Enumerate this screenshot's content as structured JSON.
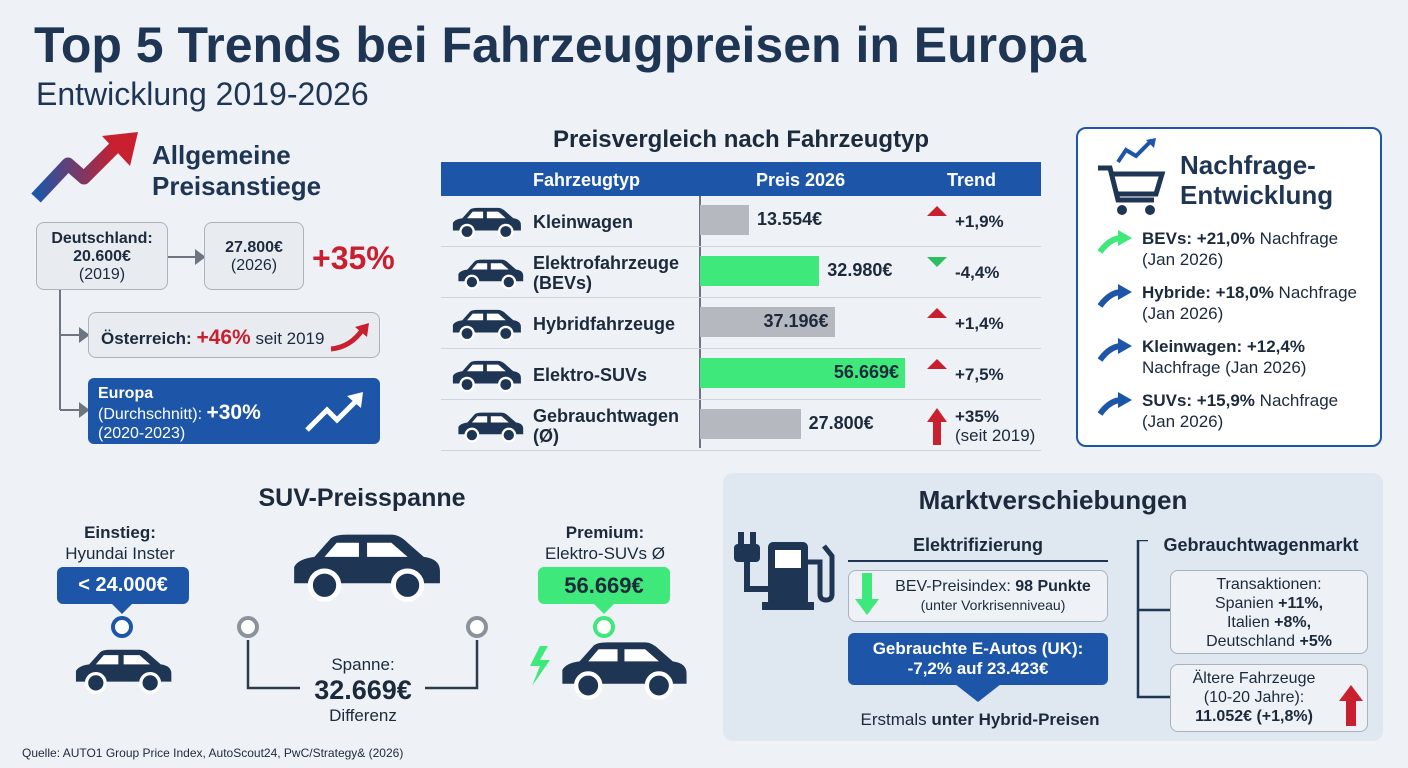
{
  "header": {
    "title": "Top 5 Trends bei Fahrzeugpreisen in Europa",
    "subtitle": "Entwicklung 2019-2026"
  },
  "price_rise": {
    "title": [
      "Allgemeine",
      "Preisanstiege"
    ],
    "germany_label": "Deutschland:",
    "germany_2019": "20.600€",
    "year_2019": "(2019)",
    "germany_2026": "27.800€",
    "year_2026": "(2026)",
    "change": "+35%",
    "austria_label": "Österreich:",
    "austria_change": "+46%",
    "austria_since": "seit 2019",
    "europe_label": "Europa",
    "europe_avg": "(Durchschnitt):",
    "europe_change": "+30%",
    "europe_period": "(2020-2023)"
  },
  "table": {
    "title": "Preisvergleich nach Fahrzeugtyp",
    "columns": [
      "Fahrzeugtyp",
      "Preis 2026",
      "Trend"
    ],
    "rows": [
      {
        "type": [
          "Kleinwagen"
        ],
        "price": 13554,
        "price_label": "13.554€",
        "bar_color": "#b5b9bf",
        "trend": "+1,9%",
        "direction": "up"
      },
      {
        "type": [
          "Elektrofahrzeuge",
          "(BEVs)"
        ],
        "price": 32980,
        "price_label": "32.980€",
        "bar_color": "#3ee87a",
        "trend": "-4,4%",
        "direction": "down"
      },
      {
        "type": [
          "Hybridfahrzeuge"
        ],
        "price": 37196,
        "price_label": "37.196€",
        "bar_color": "#b5b9bf",
        "trend": "+1,4%",
        "direction": "up"
      },
      {
        "type": [
          "Elektro-SUVs"
        ],
        "price": 56669,
        "price_label": "56.669€",
        "bar_color": "#3ee87a",
        "trend": "+7,5%",
        "direction": "up"
      },
      {
        "type": [
          "Gebrauchtwagen",
          "(Ø)"
        ],
        "price": 27800,
        "price_label": "27.800€",
        "bar_color": "#b5b9bf",
        "trend": "+35%",
        "trend_note": "(seit 2019)",
        "direction": "up-strong"
      }
    ]
  },
  "demand": {
    "title": [
      "Nachfrage-",
      "Entwicklung"
    ],
    "items": [
      {
        "bold": "BEVs: +21,0%",
        "text": "Nachfrage (Jan 2026)",
        "arrow_color": "#3ee87a"
      },
      {
        "bold": "Hybride: +18,0%",
        "text": "Nachfrage (Jan 2026)",
        "arrow_color": "#1d56a8"
      },
      {
        "bold": "Kleinwagen: +12,4%",
        "text": "Nachfrage (Jan 2026)",
        "arrow_color": "#1d56a8"
      },
      {
        "bold": "SUVs: +15,9%",
        "text": "Nachfrage (Jan 2026)",
        "arrow_color": "#1d56a8"
      }
    ]
  },
  "suv": {
    "title": "SUV-Preisspanne",
    "entry_label": "Einstieg:",
    "entry_model": "Hyundai Inster",
    "entry_price": "< 24.000€",
    "premium_label": "Premium:",
    "premium_model": "Elektro-SUVs Ø",
    "premium_price": "56.669€",
    "span_label": "Spanne:",
    "span_value": "32.669€",
    "span_note": "Differenz"
  },
  "market": {
    "title": "Marktverschiebungen",
    "electrification": {
      "title": "Elektrifizierung",
      "bev_index_label": "BEV-Preisindex:",
      "bev_index_value": "98 Punkte",
      "bev_index_note": "(unter Vorkrisenniveau)",
      "used_ev_title": "Gebrauchte E-Autos (UK):",
      "used_ev_value": "-7,2% auf 23.423€",
      "footer_prefix": "Erstmals",
      "footer_bold": "unter Hybrid-Preisen"
    },
    "used_market": {
      "title": "Gebrauchtwagenmarkt",
      "transactions_label": "Transaktionen:",
      "transactions": [
        {
          "country": "Spanien",
          "value": "+11%,"
        },
        {
          "country": "Italien",
          "value": "+8%,"
        },
        {
          "country": "Deutschland",
          "value": "+5%"
        }
      ],
      "older_title": "Ältere Fahrzeuge",
      "older_range": "(10-20 Jahre):",
      "older_value": "11.052€ (+1,8%)"
    }
  },
  "source": "Quelle: AUTO1 Group Price Index, AutoScout24, PwC/Strategy& (2026)"
}
